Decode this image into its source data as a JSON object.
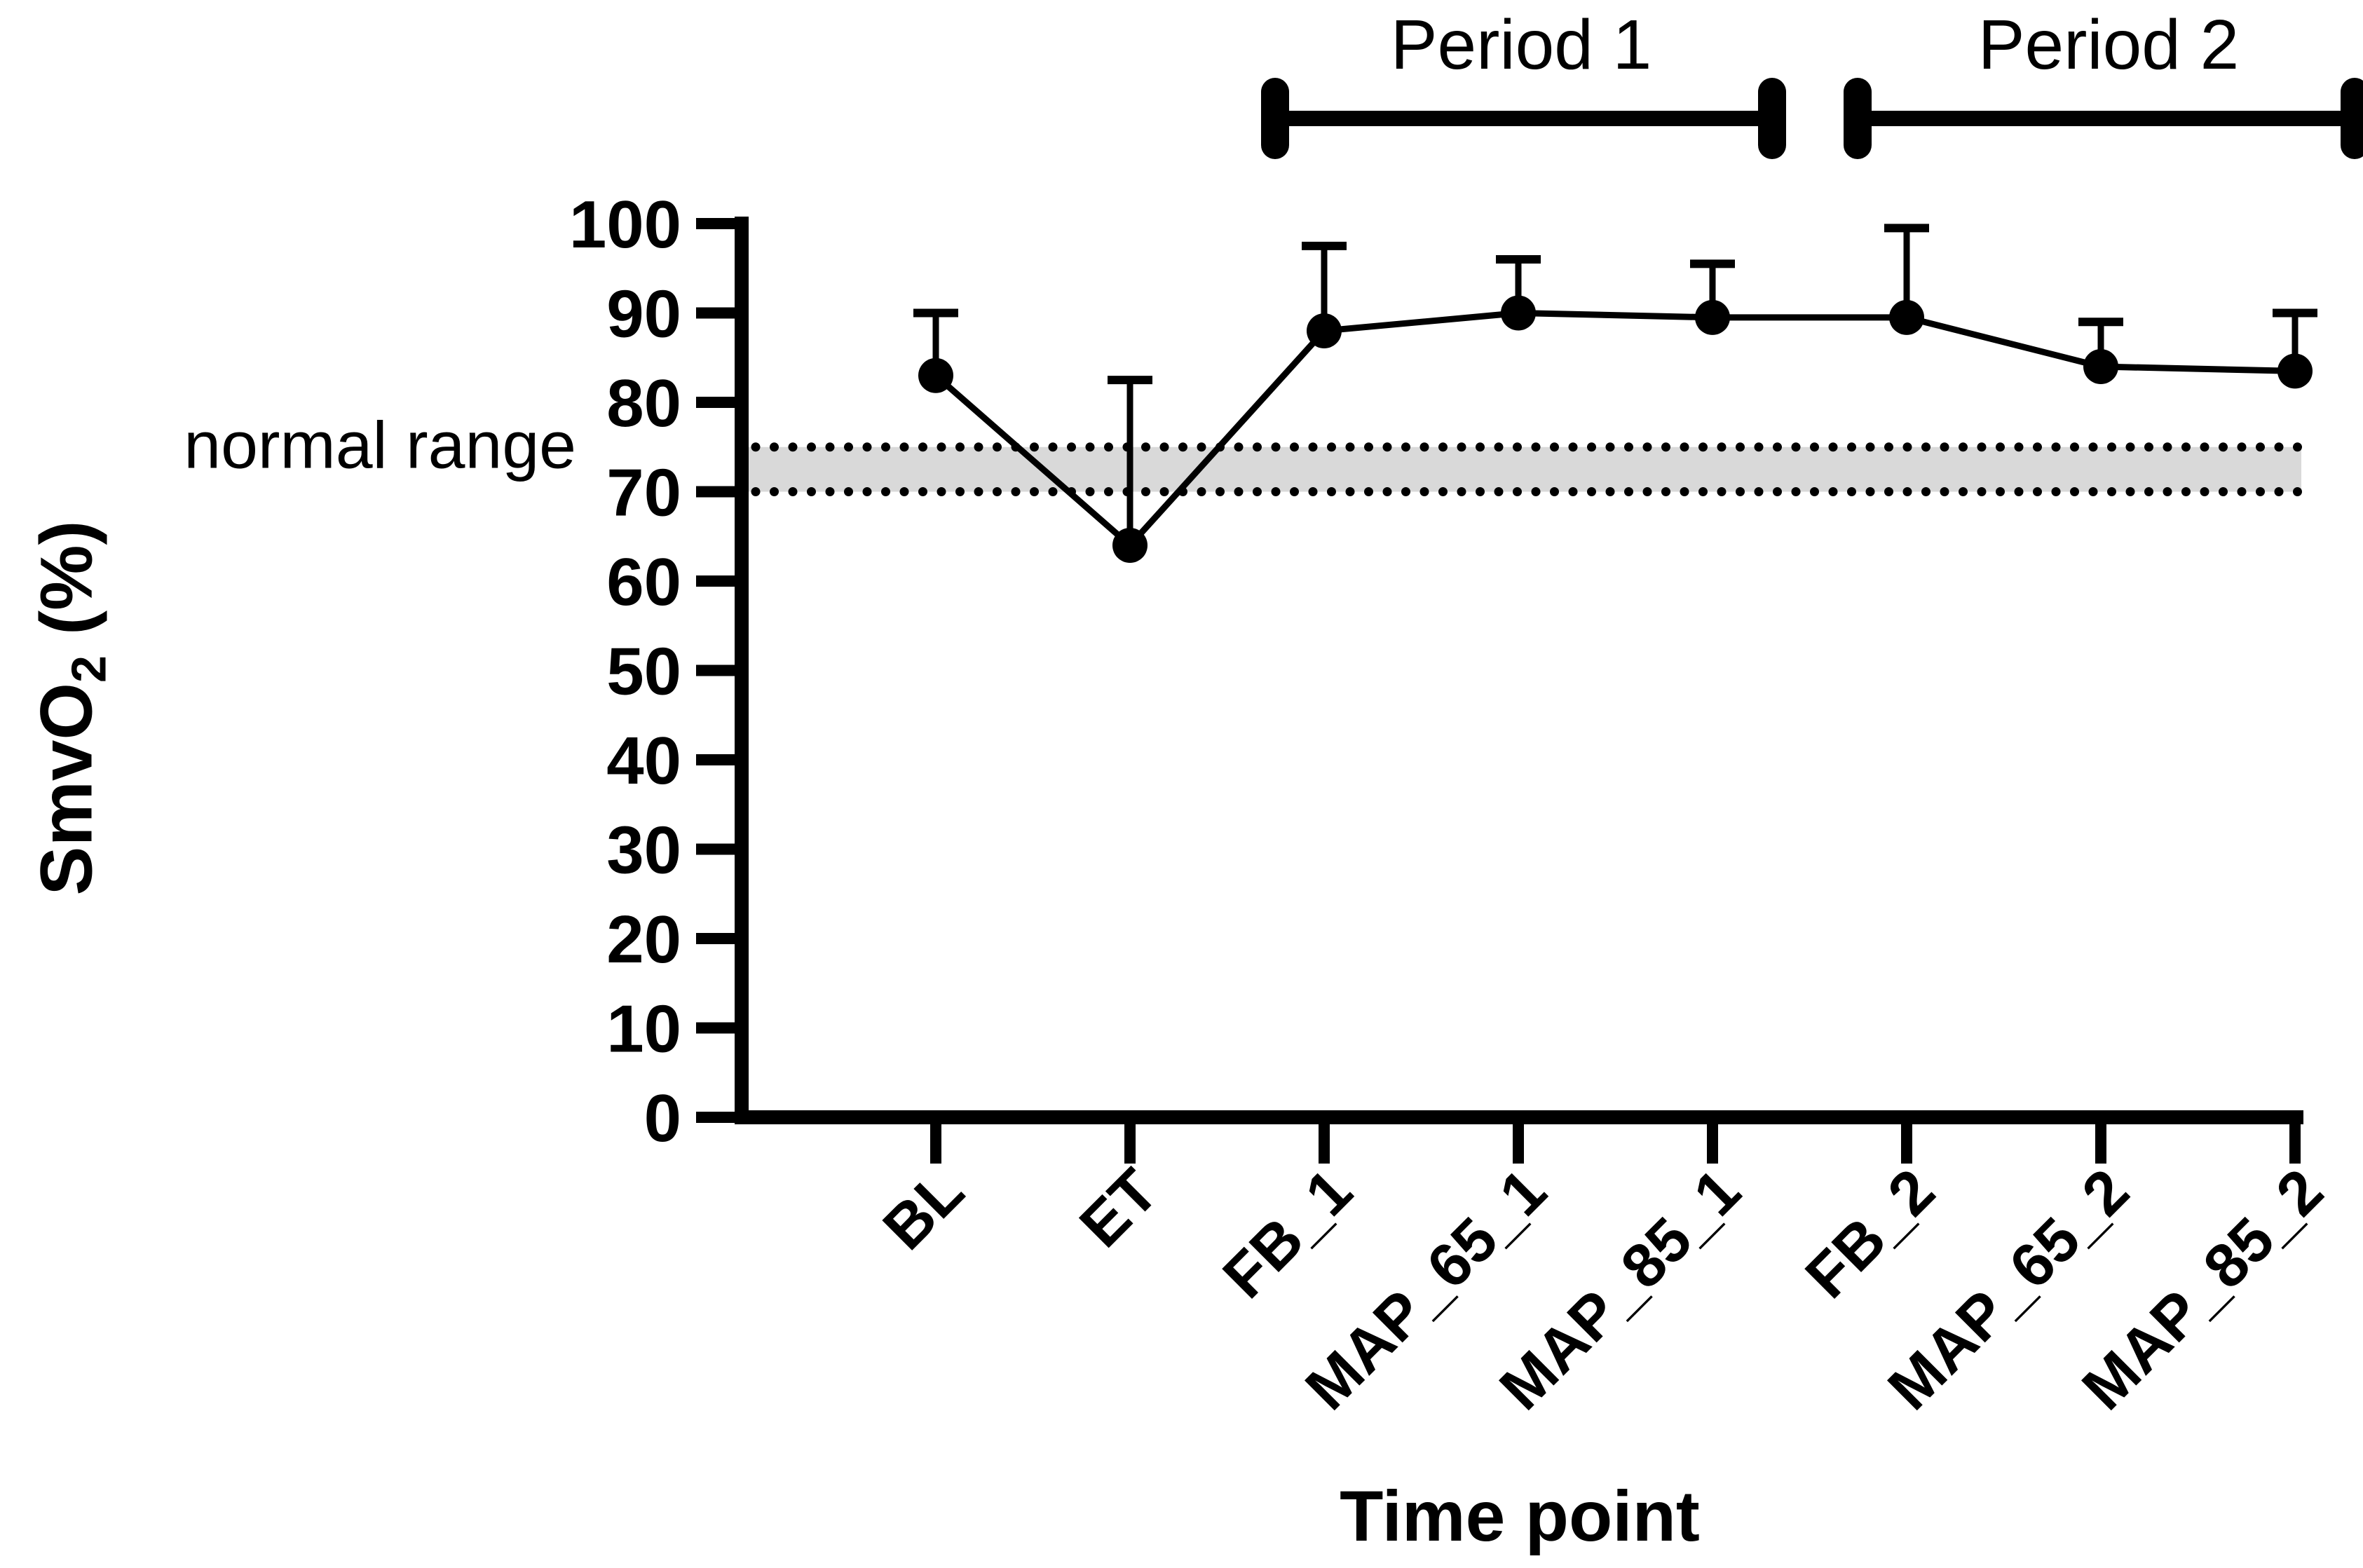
{
  "chart_data": {
    "type": "line",
    "title": "",
    "xlabel": "Time point",
    "ylabel": "SmvO2 (%)",
    "ylabel_rich": {
      "main": "SmvO",
      "sub": "2",
      "suffix": " (%)"
    },
    "categories": [
      "BL",
      "ET",
      "FB_1",
      "MAP_65_1",
      "MAP_85_1",
      "FB_2",
      "MAP_65_2",
      "MAP_85_2"
    ],
    "series": [
      {
        "name": "SmvO2",
        "marker": "filled-circle",
        "color": "#000000",
        "values": [
          83,
          64,
          88,
          90,
          89.5,
          89.5,
          84,
          83.5
        ],
        "error_bar_tops": [
          90,
          82.5,
          97.5,
          96,
          95.5,
          99.5,
          89,
          90
        ],
        "error_bars": "upper only, capped"
      }
    ],
    "ylim": [
      0,
      100
    ],
    "ytick_step": 10,
    "ytick_labels": [
      "0",
      "10",
      "20",
      "30",
      "40",
      "50",
      "60",
      "70",
      "80",
      "90",
      "100"
    ],
    "grid": "off",
    "legend": "none",
    "normal_range_band": {
      "label": "normal range",
      "low": 70,
      "high": 75,
      "fill_color": "#d9d9d9",
      "border_style": "dotted",
      "border_color": "#000000"
    },
    "period_brackets": [
      {
        "label": "Period 1",
        "from_category": "FB_1",
        "to_category": "MAP_85_1"
      },
      {
        "label": "Period 2",
        "from_category": "FB_2",
        "to_category": "MAP_85_2"
      }
    ],
    "axis_color": "#000000",
    "background_color": "#ffffff"
  }
}
